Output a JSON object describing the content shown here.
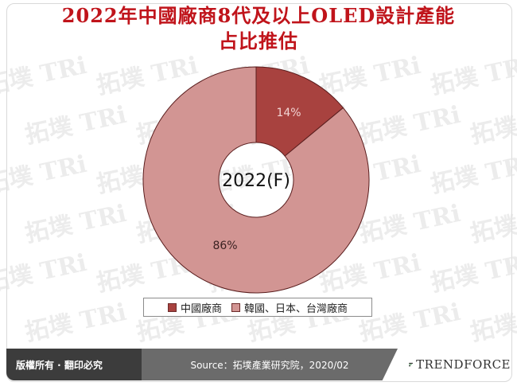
{
  "title_lines": [
    "2022年中國廠商8代及以上OLED設計產能",
    "占比推估"
  ],
  "chart_data": {
    "type": "pie",
    "title": "2022年中國廠商8代及以上OLED設計產能占比推估",
    "center_label": "2022(F)",
    "slices": [
      {
        "label": "中國廠商",
        "value": 14,
        "display": "14%",
        "color": "#a8423f"
      },
      {
        "label": "韓國、日本、台灣廠商",
        "value": 86,
        "display": "86%",
        "color": "#d29593"
      }
    ],
    "legend_position": "bottom"
  },
  "footer": {
    "copyright": "版權所有 · 翻印必究",
    "source": "Source：拓墣產業研究院，2020/02",
    "logo": "TRENDFORCE"
  },
  "watermark_text": "拓墣 TRi"
}
